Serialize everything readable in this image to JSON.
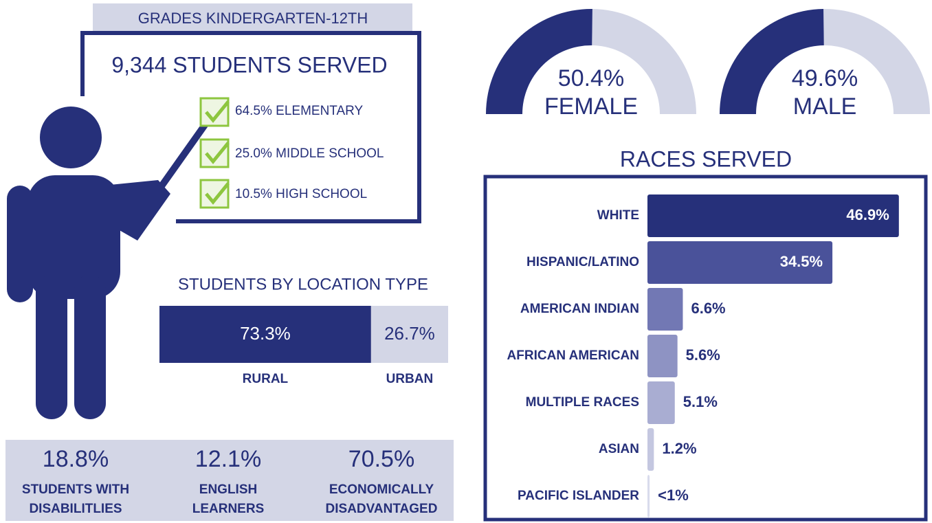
{
  "header": {
    "grades": "GRADES KINDERGARTEN-12TH",
    "students": "9,344 STUDENTS SERVED"
  },
  "levels": [
    "64.5% ELEMENTARY",
    "25.0% MIDDLE SCHOOL",
    "10.5% HIGH SCHOOL"
  ],
  "stats": [
    {
      "value": "18.8%",
      "label": [
        "STUDENTS WITH",
        "DISABILITLIES"
      ]
    },
    {
      "value": "12.1%",
      "label": [
        "ENGLISH",
        "LEARNERS"
      ]
    },
    {
      "value": "70.5%",
      "label": [
        "ECONOMICALLY",
        "DISADVANTAGED"
      ]
    }
  ],
  "chart_data": [
    {
      "type": "gauge",
      "categories": [
        "FEMALE"
      ],
      "values": [
        50.4
      ],
      "value_labels": [
        "50.4%"
      ],
      "color": "#26307a",
      "track_color": "#d3d6e6"
    },
    {
      "type": "gauge",
      "categories": [
        "MALE"
      ],
      "values": [
        49.6
      ],
      "value_labels": [
        "49.6%"
      ],
      "color": "#26307a",
      "track_color": "#d3d6e6"
    },
    {
      "type": "stacked-bar",
      "title": "STUDENTS BY LOCATION TYPE",
      "categories": [
        "RURAL",
        "URBAN"
      ],
      "values": [
        73.3,
        26.7
      ],
      "value_labels": [
        "73.3%",
        "26.7%"
      ],
      "colors": [
        "#26307a",
        "#d3d6e6"
      ]
    },
    {
      "type": "hbar",
      "title": "RACES SERVED",
      "categories": [
        "WHITE",
        "HISPANIC/LATINO",
        "AMERICAN INDIAN",
        "AFRICAN AMERICAN",
        "MULTIPLE RACES",
        "ASIAN",
        "PACIFIC ISLANDER"
      ],
      "values": [
        46.9,
        34.5,
        6.6,
        5.6,
        5.1,
        1.2,
        0.4
      ],
      "value_labels": [
        "46.9%",
        "34.5%",
        "6.6%",
        "5.6%",
        "5.1%",
        "1.2%",
        "<1%"
      ],
      "colors": [
        "#26307a",
        "#4a529a",
        "#7278b4",
        "#8e93c3",
        "#a9add2",
        "#c4c7e0",
        "#d9dbec"
      ]
    }
  ]
}
